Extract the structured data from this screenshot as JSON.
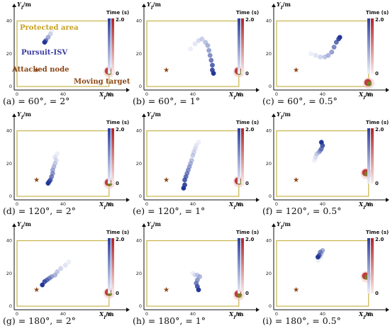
{
  "legend": {
    "colorbar_title": "Time (s)",
    "colorbar_max": "2.0",
    "colorbar_min": "0"
  },
  "annotations": {
    "protected_area": "Protected area",
    "pursuit_isv": "Pursuit-ISV",
    "attacked_node": "Attacked node",
    "moving_target": "Moving target"
  },
  "colors": {
    "protected_area": "#c8b44a",
    "pursuer": "#2b3f9e",
    "target": "#b22222",
    "attacked_node": "#8b4513",
    "annotation_protected": "#c8a020",
    "annotation_pursuit": "#3a3aa0",
    "annotation_attacked": "#8b4513"
  },
  "chart_data": [
    {
      "type": "scatter",
      "caption": "(a) FoVP = 60°, MSAP = 2°",
      "caption_html": "(a) <i>FoV<tspan baseline-shift='sub' font-size='8'>P</tspan></i> = 60°, <i>MSA<tspan baseline-shift='sub' font-size='8'>P</tspan></i> = 2°",
      "xlabel": "XI/m",
      "ylabel": "YI/m",
      "xlim": [
        0,
        90
      ],
      "ylim": [
        0,
        45
      ],
      "x_ticks": [
        "0",
        "40",
        "80"
      ],
      "y_ticks": [
        "0",
        "20",
        "40"
      ],
      "area": {
        "x0": 0,
        "x1": 80,
        "y0": 0,
        "y1": 40
      },
      "attacked_node": {
        "x": 17,
        "y": 10
      },
      "target": {
        "x": 80,
        "y": 9
      },
      "pursuer_path": [
        [
          30,
          34
        ],
        [
          29,
          32
        ],
        [
          27,
          30
        ],
        [
          25,
          28
        ],
        [
          24,
          27
        ]
      ],
      "show_annotations": true
    },
    {
      "type": "scatter",
      "caption": "(b) FoVP = 60°, MSAP = 1°",
      "caption_html": "(b) <i>FoV<tspan baseline-shift='sub' font-size='8'>P</tspan></i> = 60°, <i>MSA<tspan baseline-shift='sub' font-size='8'>P</tspan></i> = 1°",
      "xlabel": "XI/m",
      "ylabel": "YI/m",
      "xlim": [
        0,
        90
      ],
      "ylim": [
        0,
        45
      ],
      "x_ticks": [
        "0",
        "40",
        "80"
      ],
      "y_ticks": [
        "0",
        "20",
        "40"
      ],
      "area": {
        "x0": 0,
        "x1": 80,
        "y0": 0,
        "y1": 40
      },
      "attacked_node": {
        "x": 17,
        "y": 10
      },
      "target": {
        "x": 80,
        "y": 9
      },
      "pursuer_path": [
        [
          38,
          23
        ],
        [
          42,
          26
        ],
        [
          45,
          28
        ],
        [
          48,
          29
        ],
        [
          51,
          27
        ],
        [
          53,
          25
        ],
        [
          54,
          22
        ],
        [
          55,
          19
        ],
        [
          56,
          16
        ],
        [
          57,
          13
        ],
        [
          57,
          10
        ],
        [
          58,
          8
        ]
      ]
    },
    {
      "type": "scatter",
      "caption": "(c) FoVP = 60°, MSAP = 0.5°",
      "caption_html": "(c) <i>FoV<tspan baseline-shift='sub' font-size='8'>P</tspan></i> = 60°, <i>MSA<tspan baseline-shift='sub' font-size='8'>P</tspan></i> = 0.5°",
      "xlabel": "XI/m",
      "ylabel": "YI/m",
      "xlim": [
        0,
        90
      ],
      "ylim": [
        0,
        45
      ],
      "x_ticks": [
        "0",
        "40",
        "80"
      ],
      "y_ticks": [
        "0",
        "20",
        "40"
      ],
      "area": {
        "x0": 0,
        "x1": 80,
        "y0": 0,
        "y1": 40
      },
      "attacked_node": {
        "x": 17,
        "y": 10
      },
      "target": {
        "x": 80,
        "y": 2
      },
      "pursuer_path": [
        [
          30,
          20
        ],
        [
          34,
          19
        ],
        [
          38,
          18
        ],
        [
          42,
          18
        ],
        [
          45,
          19
        ],
        [
          48,
          21
        ],
        [
          50,
          24
        ],
        [
          52,
          27
        ],
        [
          54,
          29
        ],
        [
          55,
          30
        ]
      ]
    },
    {
      "type": "scatter",
      "caption": "(d) FoVP = 120°, MSAP = 2°",
      "caption_html": "(d) <i>FoV<tspan baseline-shift='sub' font-size='8'>P</tspan></i> = 120°, <i>MSA<tspan baseline-shift='sub' font-size='8'>P</tspan></i> = 2°",
      "xlabel": "XI/m",
      "ylabel": "YI/m",
      "xlim": [
        0,
        90
      ],
      "ylim": [
        0,
        45
      ],
      "x_ticks": [
        "0",
        "40",
        "80"
      ],
      "y_ticks": [
        "0",
        "20",
        "40"
      ],
      "area": {
        "x0": 0,
        "x1": 80,
        "y0": 0,
        "y1": 40
      },
      "attacked_node": {
        "x": 17,
        "y": 10
      },
      "target": {
        "x": 80,
        "y": 8
      },
      "pursuer_path": [
        [
          35,
          26
        ],
        [
          33,
          24
        ],
        [
          34,
          22
        ],
        [
          33,
          20
        ],
        [
          32,
          18
        ],
        [
          31,
          16
        ],
        [
          31,
          14
        ],
        [
          30,
          12
        ],
        [
          29,
          10
        ],
        [
          28,
          9
        ],
        [
          27,
          8
        ]
      ]
    },
    {
      "type": "scatter",
      "caption": "(e) FoVP = 120°, MSAP = 1°",
      "caption_html": "(e) <i>FoV<tspan baseline-shift='sub' font-size='8'>P</tspan></i> = 120°, <i>MSA<tspan baseline-shift='sub' font-size='8'>P</tspan></i> = 1°",
      "xlabel": "XI/m",
      "ylabel": "YI/m",
      "xlim": [
        0,
        90
      ],
      "ylim": [
        0,
        45
      ],
      "x_ticks": [
        "0",
        "40",
        "80"
      ],
      "y_ticks": [
        "0",
        "20",
        "40"
      ],
      "area": {
        "x0": 0,
        "x1": 80,
        "y0": 0,
        "y1": 40
      },
      "attacked_node": {
        "x": 17,
        "y": 10
      },
      "target": {
        "x": 80,
        "y": 9
      },
      "pursuer_path": [
        [
          45,
          33
        ],
        [
          43,
          31
        ],
        [
          42,
          29
        ],
        [
          41,
          27
        ],
        [
          40,
          25
        ],
        [
          39,
          22
        ],
        [
          38,
          20
        ],
        [
          37,
          18
        ],
        [
          36,
          16
        ],
        [
          35,
          14
        ],
        [
          34,
          12
        ],
        [
          33,
          10
        ],
        [
          33,
          7
        ],
        [
          32,
          5
        ]
      ]
    },
    {
      "type": "scatter",
      "caption": "(f) FoVP = 120°, MSAP = 0.5°",
      "caption_html": "(f) <i>FoV<tspan baseline-shift='sub' font-size='8'>P</tspan></i> = 120°, <i>MSA<tspan baseline-shift='sub' font-size='8'>P</tspan></i> = 0.5°",
      "xlabel": "XI/m",
      "ylabel": "YI/m",
      "xlim": [
        0,
        90
      ],
      "ylim": [
        0,
        45
      ],
      "x_ticks": [
        "0",
        "40",
        "80"
      ],
      "y_ticks": [
        "0",
        "20",
        "40"
      ],
      "area": {
        "x0": 0,
        "x1": 80,
        "y0": 0,
        "y1": 40
      },
      "attacked_node": {
        "x": 17,
        "y": 10
      },
      "target": {
        "x": 78,
        "y": 14
      },
      "pursuer_path": [
        [
          33,
          22
        ],
        [
          34,
          24
        ],
        [
          35,
          26
        ],
        [
          37,
          27
        ],
        [
          38,
          28
        ],
        [
          39,
          29
        ],
        [
          40,
          31
        ],
        [
          39,
          33
        ]
      ]
    },
    {
      "type": "scatter",
      "caption": "(g) FoVP = 180°, MSAP = 2°",
      "caption_html": "(g) <i>FoV<tspan baseline-shift='sub' font-size='8'>P</tspan></i> = 180°, <i>MSA<tspan baseline-shift='sub' font-size='8'>P</tspan></i> = 2°",
      "xlabel": "XI/m",
      "ylabel": "YI/m",
      "xlim": [
        0,
        90
      ],
      "ylim": [
        0,
        45
      ],
      "x_ticks": [
        "0",
        "40",
        "80"
      ],
      "y_ticks": [
        "0",
        "20",
        "40"
      ],
      "area": {
        "x0": 0,
        "x1": 80,
        "y0": 0,
        "y1": 40
      },
      "attacked_node": {
        "x": 17,
        "y": 10
      },
      "target": {
        "x": 80,
        "y": 8
      },
      "pursuer_path": [
        [
          45,
          27
        ],
        [
          42,
          25
        ],
        [
          38,
          23
        ],
        [
          35,
          21
        ],
        [
          33,
          19
        ],
        [
          30,
          18
        ],
        [
          28,
          17
        ],
        [
          26,
          16
        ],
        [
          24,
          15
        ],
        [
          22,
          13
        ]
      ]
    },
    {
      "type": "scatter",
      "caption": "(h) FoVP = 180°, MSAP = 1°",
      "caption_html": "(h) <i>FoV<tspan baseline-shift='sub' font-size='8'>P</tspan></i> = 180°, <i>MSA<tspan baseline-shift='sub' font-size='8'>P</tspan></i> = 1°",
      "xlabel": "XI/m",
      "ylabel": "YI/m",
      "xlim": [
        0,
        90
      ],
      "ylim": [
        0,
        45
      ],
      "x_ticks": [
        "0",
        "40",
        "80"
      ],
      "y_ticks": [
        "0",
        "20",
        "40"
      ],
      "area": {
        "x0": 0,
        "x1": 80,
        "y0": 0,
        "y1": 40
      },
      "attacked_node": {
        "x": 17,
        "y": 10
      },
      "target": {
        "x": 80,
        "y": 7
      },
      "pursuer_path": [
        [
          40,
          20
        ],
        [
          42,
          19
        ],
        [
          44,
          19
        ],
        [
          46,
          18
        ],
        [
          44,
          16
        ],
        [
          43,
          14
        ],
        [
          44,
          12
        ],
        [
          45,
          10
        ]
      ]
    },
    {
      "type": "scatter",
      "caption": "(i) FoVP = 180°, MSAP = 0.5°",
      "caption_html": "(i) <i>FoV<tspan baseline-shift='sub' font-size='8'>P</tspan></i> = 180°, <i>MSA<tspan baseline-shift='sub' font-size='8'>P</tspan></i> = 0.5°",
      "xlabel": "XI/m",
      "ylabel": "YI/m",
      "xlim": [
        0,
        90
      ],
      "ylim": [
        0,
        45
      ],
      "x_ticks": [
        "0",
        "40",
        "80"
      ],
      "y_ticks": [
        "0",
        "20",
        "40"
      ],
      "area": {
        "x0": 0,
        "x1": 80,
        "y0": 0,
        "y1": 40
      },
      "attacked_node": {
        "x": 17,
        "y": 10
      },
      "target": {
        "x": 78,
        "y": 18
      },
      "pursuer_path": [
        [
          36,
          28
        ],
        [
          38,
          30
        ],
        [
          39,
          32
        ],
        [
          40,
          34
        ],
        [
          38,
          33
        ],
        [
          37,
          31
        ],
        [
          36,
          30
        ]
      ]
    }
  ]
}
